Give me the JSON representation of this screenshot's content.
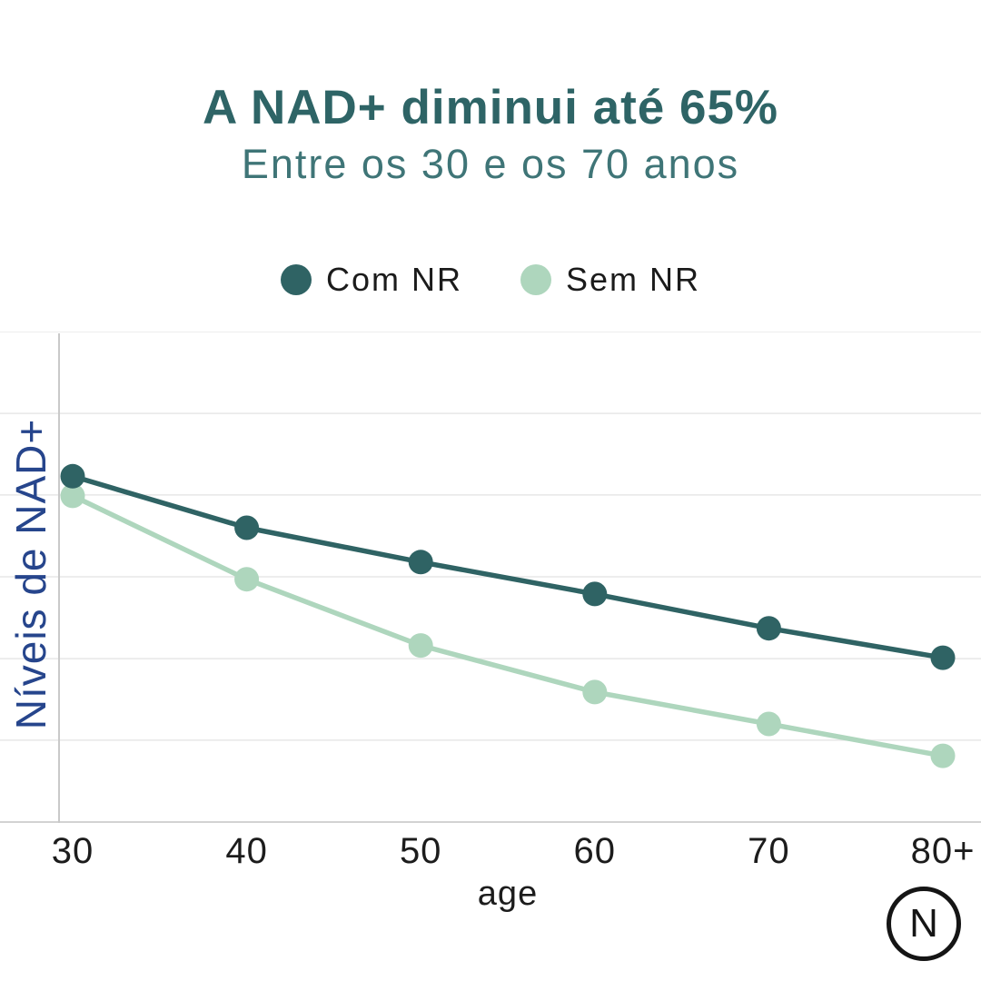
{
  "header": {
    "title": "A NAD+ diminui até 65%",
    "subtitle": "Entre os 30 e os 70 anos"
  },
  "legend": [
    {
      "label": "Com NR",
      "color": "#2f6364"
    },
    {
      "label": "Sem NR",
      "color": "#aed6bd"
    }
  ],
  "chart_data": {
    "type": "line",
    "title": "A NAD+ diminui até 65%",
    "subtitle": "Entre os 30 e os 70 anos",
    "categories": [
      "30",
      "40",
      "50",
      "60",
      "70",
      "80+"
    ],
    "x_tick_labels": [
      "30",
      "40",
      "50",
      "60",
      "70",
      "80+"
    ],
    "xlabel": "age",
    "ylabel": "Níveis de NAD+",
    "ylim": [
      0,
      100
    ],
    "y_tick_labels_visible": false,
    "grid": "horizontal",
    "gridline_values": [
      0,
      16.7,
      33.3,
      50,
      66.7,
      83.3,
      100
    ],
    "legend_position": "top",
    "series": [
      {
        "name": "Com NR",
        "color": "#2f6364",
        "values": [
          70.5,
          60,
          53,
          46.5,
          39.5,
          33.5
        ]
      },
      {
        "name": "Sem NR",
        "color": "#aed6bd",
        "values": [
          66.5,
          49.5,
          36,
          26.5,
          20,
          13.5
        ]
      }
    ]
  },
  "colors": {
    "title": "#2e6466",
    "subtitle": "#3f7577",
    "ylabel": "#26458c",
    "grid": "#e7e7e7",
    "axis_line": "#c9c9c9",
    "bottom_line": "#d2d2d2",
    "tick_text": "#1c1c1c"
  },
  "logo": {
    "letter": "N"
  }
}
